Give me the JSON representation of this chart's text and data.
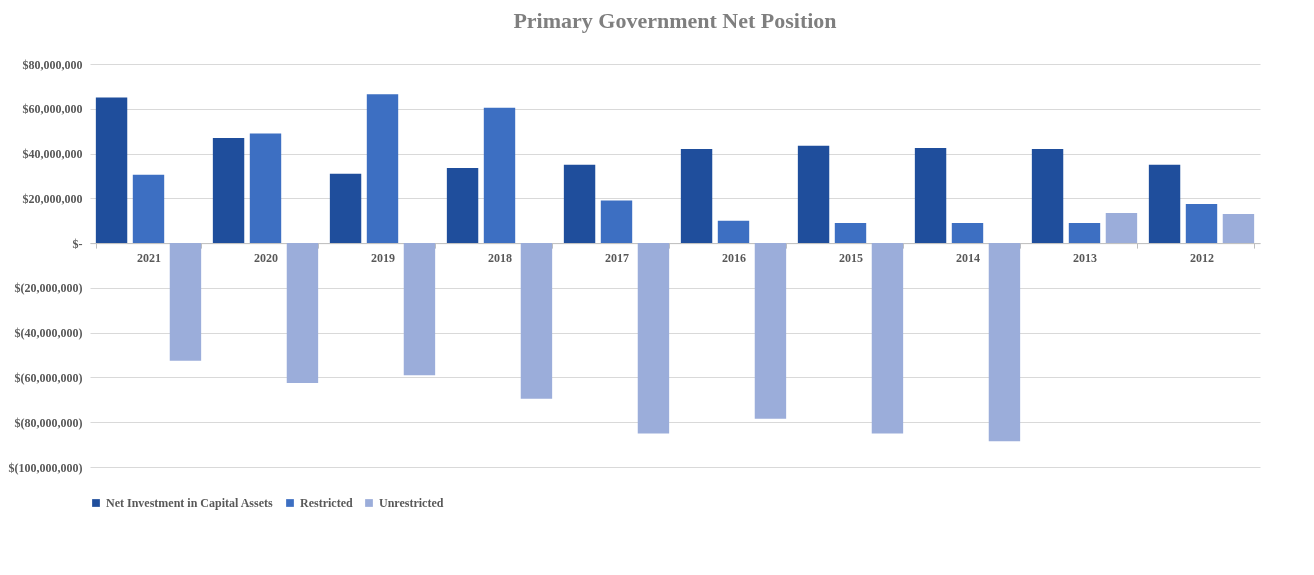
{
  "chart_data": {
    "type": "bar",
    "title": "Primary Government Net Position",
    "categories": [
      "2021",
      "2020",
      "2019",
      "2018",
      "2017",
      "2016",
      "2015",
      "2014",
      "2013",
      "2012"
    ],
    "series": [
      {
        "name": "Net Investment in Capital Assets",
        "color": "#1f4e9c",
        "values": [
          65000000,
          47000000,
          31000000,
          33500000,
          35000000,
          42000000,
          43500000,
          42500000,
          42000000,
          35000000
        ]
      },
      {
        "name": "Restricted",
        "color": "#3d6fc2",
        "values": [
          30500000,
          49000000,
          66500000,
          60500000,
          19000000,
          10000000,
          9000000,
          9000000,
          9000000,
          17500000
        ]
      },
      {
        "name": "Unrestricted",
        "color": "#9badda",
        "values": [
          -52500000,
          -62500000,
          -59000000,
          -69500000,
          -85000000,
          -78500000,
          -85000000,
          -88500000,
          13500000,
          13000000
        ]
      }
    ],
    "ylim": [
      -100000000,
      80000000
    ],
    "yticks": [
      {
        "value": -100000000,
        "label": "$(100,000,000)"
      },
      {
        "value": -80000000,
        "label": "$(80,000,000)"
      },
      {
        "value": -60000000,
        "label": "$(60,000,000)"
      },
      {
        "value": -40000000,
        "label": "$(40,000,000)"
      },
      {
        "value": -20000000,
        "label": "$(20,000,000)"
      },
      {
        "value": 0,
        "label": "$-"
      },
      {
        "value": 20000000,
        "label": "$20,000,000"
      },
      {
        "value": 40000000,
        "label": "$40,000,000"
      },
      {
        "value": 60000000,
        "label": "$60,000,000"
      },
      {
        "value": 80000000,
        "label": "$80,000,000"
      }
    ],
    "grid": "y",
    "legend": "bottom"
  }
}
